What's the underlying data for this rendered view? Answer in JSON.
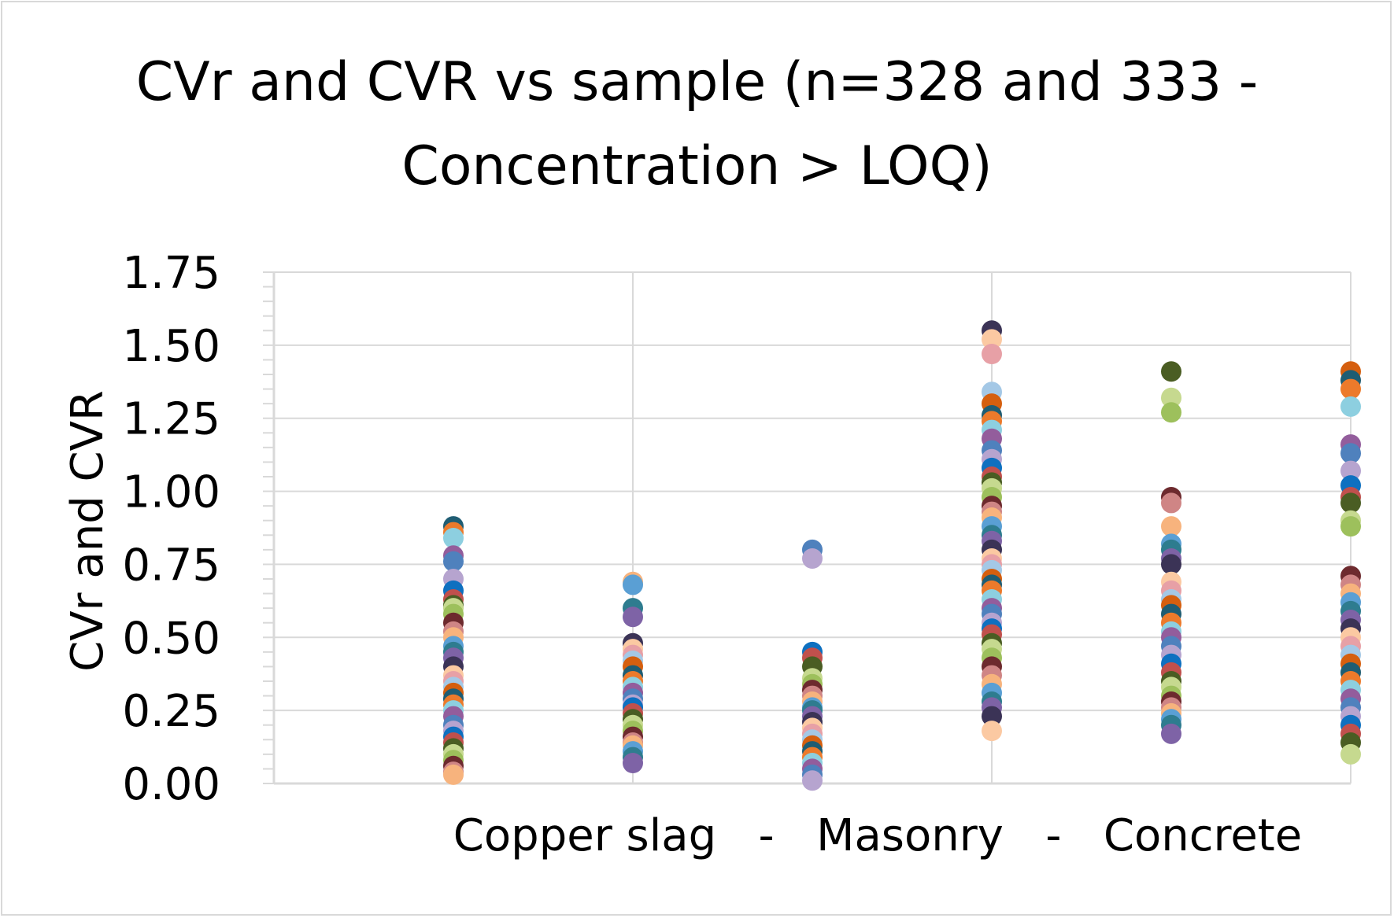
{
  "chart_data": {
    "type": "scatter",
    "title_line1": "CVr and CVR vs sample (n=328 and 333 -",
    "title_line2": "Concentration > LOQ)",
    "ylabel": "CVr and CVR",
    "xlabel": "Copper slag   -   Masonry   -   Concrete",
    "ylim": [
      0,
      1.75
    ],
    "y_ticks": [
      "0.00",
      "0.25",
      "0.50",
      "0.75",
      "1.00",
      "1.25",
      "1.50",
      "1.75"
    ],
    "x_positions": [
      1,
      2,
      3,
      4,
      5,
      6
    ],
    "grid": true,
    "columns": [
      {
        "x": 1,
        "values": [
          0.88,
          0.86,
          0.84,
          0.78,
          0.76,
          0.7,
          0.66,
          0.63,
          0.61,
          0.6,
          0.58,
          0.55,
          0.52,
          0.5,
          0.47,
          0.45,
          0.43,
          0.4,
          0.37,
          0.35,
          0.33,
          0.31,
          0.29,
          0.27,
          0.25,
          0.23,
          0.2,
          0.18,
          0.16,
          0.14,
          0.12,
          0.1,
          0.08,
          0.06,
          0.04,
          0.03
        ]
      },
      {
        "x": 2,
        "values": [
          0.69,
          0.68,
          0.6,
          0.57,
          0.48,
          0.46,
          0.44,
          0.42,
          0.4,
          0.37,
          0.35,
          0.33,
          0.31,
          0.29,
          0.27,
          0.26,
          0.24,
          0.22,
          0.2,
          0.18,
          0.16,
          0.14,
          0.13,
          0.11,
          0.09,
          0.07
        ]
      },
      {
        "x": 3,
        "values": [
          0.8,
          0.77,
          0.45,
          0.43,
          0.4,
          0.36,
          0.34,
          0.32,
          0.3,
          0.28,
          0.26,
          0.25,
          0.23,
          0.21,
          0.19,
          0.17,
          0.15,
          0.13,
          0.11,
          0.09,
          0.07,
          0.05,
          0.03,
          0.01
        ]
      },
      {
        "x": 4,
        "values": [
          1.55,
          1.52,
          1.47,
          1.34,
          1.3,
          1.26,
          1.24,
          1.21,
          1.18,
          1.14,
          1.11,
          1.08,
          1.05,
          1.03,
          1.01,
          0.98,
          0.95,
          0.93,
          0.91,
          0.88,
          0.85,
          0.83,
          0.8,
          0.77,
          0.75,
          0.73,
          0.7,
          0.68,
          0.66,
          0.63,
          0.6,
          0.58,
          0.55,
          0.53,
          0.51,
          0.48,
          0.46,
          0.43,
          0.4,
          0.37,
          0.34,
          0.31,
          0.28,
          0.26,
          0.23,
          0.18
        ]
      },
      {
        "x": 5,
        "values": [
          1.41,
          1.32,
          1.27,
          0.98,
          0.96,
          0.88,
          0.82,
          0.8,
          0.77,
          0.75,
          0.69,
          0.66,
          0.63,
          0.61,
          0.58,
          0.55,
          0.52,
          0.5,
          0.47,
          0.44,
          0.41,
          0.38,
          0.35,
          0.33,
          0.3,
          0.28,
          0.26,
          0.24,
          0.22,
          0.2,
          0.17
        ]
      },
      {
        "x": 6,
        "values": [
          1.41,
          1.38,
          1.35,
          1.29,
          1.16,
          1.13,
          1.07,
          1.02,
          0.98,
          0.96,
          0.9,
          0.88,
          0.71,
          0.68,
          0.65,
          0.62,
          0.59,
          0.56,
          0.53,
          0.5,
          0.47,
          0.44,
          0.41,
          0.38,
          0.35,
          0.32,
          0.29,
          0.26,
          0.23,
          0.2,
          0.17,
          0.14,
          0.1
        ]
      }
    ],
    "palette": [
      "#1f5d73",
      "#e7a0a6",
      "#7e63a6",
      "#f7b37d",
      "#9dc05c",
      "#c0504d",
      "#4f81bd",
      "#ec7a2b",
      "#a4c8e6",
      "#3b3356",
      "#5a9fd4",
      "#6d2a2e",
      "#4a5d23",
      "#b6a4cf",
      "#8dcfe0",
      "#d55f0f",
      "#fbc9a2",
      "#2e7c8f",
      "#cf8585",
      "#c6d98f",
      "#0e70c0",
      "#935d9c"
    ]
  }
}
